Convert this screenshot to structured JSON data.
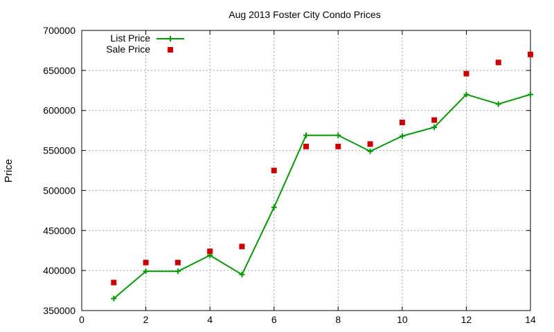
{
  "chart_data": {
    "type": "line",
    "title": "Aug 2013 Foster City Condo Prices",
    "xlabel": "",
    "ylabel": "Price",
    "xlim": [
      0,
      14
    ],
    "ylim": [
      350000,
      700000
    ],
    "xticks": [
      0,
      2,
      4,
      6,
      8,
      10,
      12,
      14
    ],
    "yticks": [
      350000,
      400000,
      450000,
      500000,
      550000,
      600000,
      650000,
      700000
    ],
    "grid": true,
    "legend_position": "top-left",
    "series": [
      {
        "name": "List Price",
        "style": "line-with-plus-markers",
        "color": "#009900",
        "x": [
          1,
          2,
          3,
          4,
          5,
          6,
          7,
          8,
          9,
          10,
          11,
          12,
          13,
          14
        ],
        "y": [
          365000,
          399000,
          399000,
          419000,
          395000,
          479000,
          569000,
          569000,
          549000,
          568000,
          579000,
          620000,
          608000,
          620000
        ]
      },
      {
        "name": "Sale Price",
        "style": "square-points",
        "color": "#cc0000",
        "x": [
          1,
          2,
          3,
          4,
          5,
          6,
          7,
          8,
          9,
          10,
          11,
          12,
          13,
          14
        ],
        "y": [
          385000,
          410000,
          410000,
          424000,
          430000,
          525000,
          555000,
          555000,
          558000,
          585000,
          588000,
          646000,
          660000,
          670000
        ]
      }
    ]
  }
}
